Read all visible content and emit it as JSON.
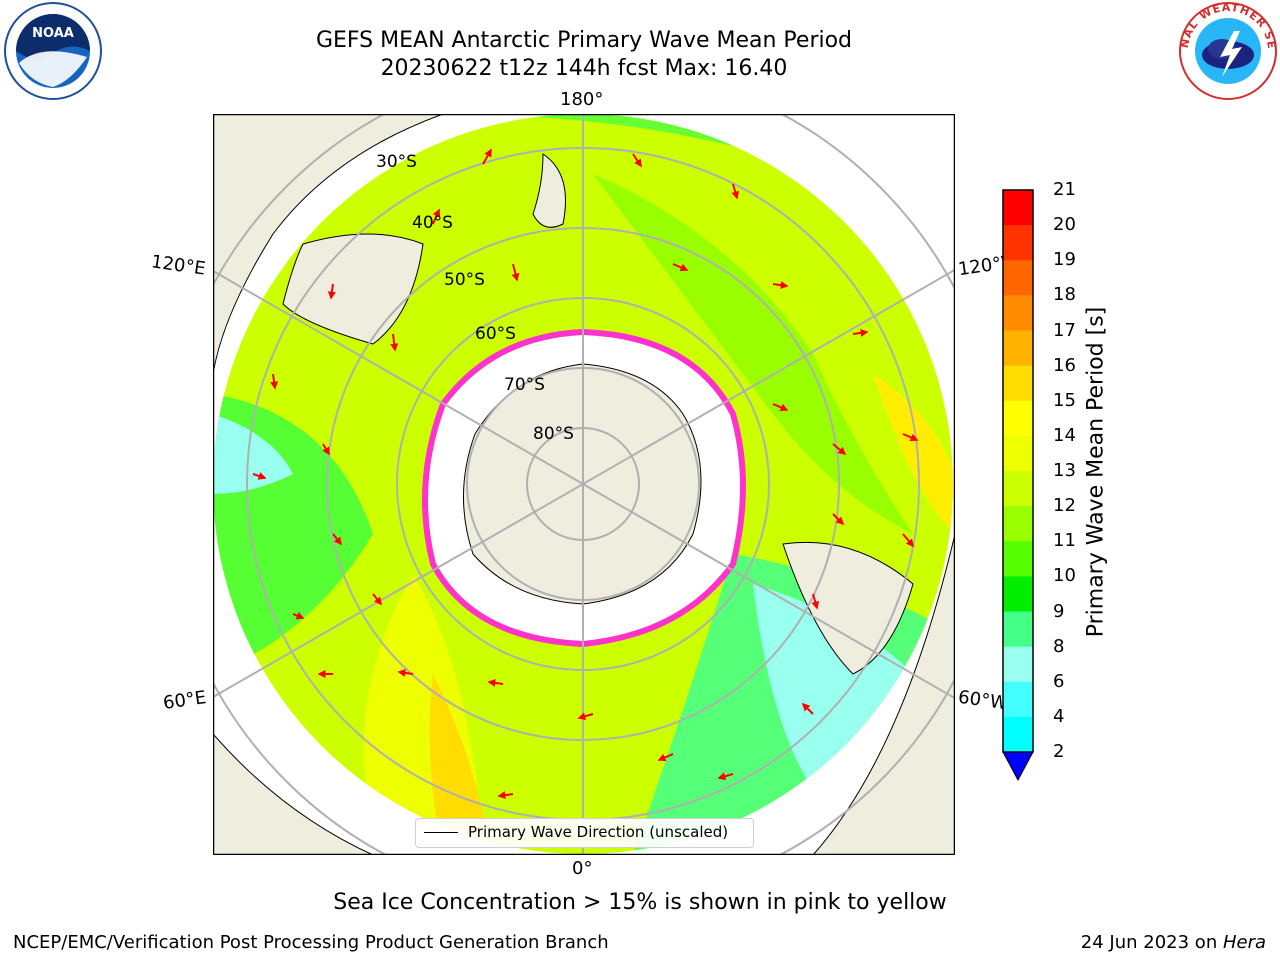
{
  "header": {
    "title_line1": "GEFS MEAN Antarctic Primary Wave Mean Period",
    "title_line2": "20230622 t12z 144h fcst   Max: 16.40"
  },
  "logos": {
    "left": {
      "text": "NOAA",
      "ring_text": "NATIONAL OCEANIC AND ATMOSPHERIC ADMINISTRATION · U.S. DEPARTMENT OF COMMERCE"
    },
    "right": {
      "ring_text": "NATIONAL WEATHER SERVICE"
    }
  },
  "map": {
    "longitude_labels": {
      "top": "180°",
      "bottom": "0°",
      "left_upper": "120°E",
      "left_lower": "60°E",
      "right_upper": "120°W",
      "right_lower": "60°W"
    },
    "latitude_labels": [
      "30°S",
      "40°S",
      "50°S",
      "60°S",
      "70°S",
      "80°S"
    ],
    "legend_label": "Primary Wave Direction (unscaled)",
    "colors": {
      "land": "#efedde",
      "ice": "#ffffff",
      "ice_edge": "#ff33cc",
      "arrow": "#ff0000"
    }
  },
  "colorbar": {
    "label": "Primary Wave Mean Period [s]",
    "ticks": [
      "21",
      "20",
      "19",
      "18",
      "17",
      "16",
      "15",
      "14",
      "13",
      "12",
      "11",
      "10",
      "9",
      "8",
      "6",
      "4",
      "2"
    ],
    "colors": [
      "#ff0000",
      "#ff3300",
      "#ff6600",
      "#ff8c00",
      "#ffb300",
      "#ffdd00",
      "#ffff00",
      "#eeff00",
      "#ccff00",
      "#99ff00",
      "#55ff00",
      "#00ee00",
      "#44ff88",
      "#99ffee",
      "#44ffff",
      "#00ffff",
      "#0088ff",
      "#0044ff"
    ]
  },
  "footer": {
    "note": "Sea Ice Concentration > 15% is shown in pink to yellow",
    "left": "NCEP/EMC/Verification Post Processing Product Generation Branch",
    "right_prefix": "24 Jun 2023 on ",
    "right_host": "Hera"
  }
}
